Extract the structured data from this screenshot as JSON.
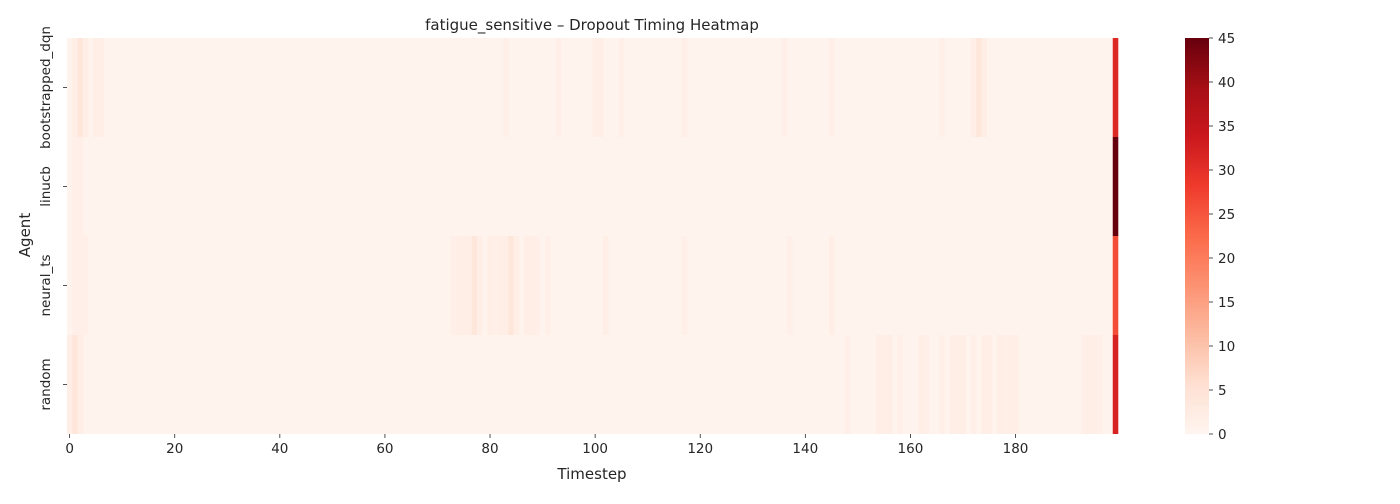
{
  "chart_data": {
    "type": "heatmap",
    "title": "fatigue_sensitive – Dropout Timing Heatmap",
    "xlabel": "Timestep",
    "ylabel": "Agent",
    "rows": [
      "bootstrapped_dqn",
      "linucb",
      "neural_ts",
      "random"
    ],
    "n_timesteps": 200,
    "x_ticks": [
      0,
      20,
      40,
      60,
      80,
      100,
      120,
      140,
      160,
      180
    ],
    "colorbar": {
      "cmap": "Reds",
      "vmin": 0,
      "vmax": 45,
      "ticks": [
        0,
        5,
        10,
        15,
        20,
        25,
        30,
        35,
        40,
        45
      ]
    },
    "base_value": 0.5,
    "cells": [
      {
        "row": "bootstrapped_dqn",
        "points": [
          [
            1,
            2
          ],
          [
            2,
            4
          ],
          [
            3,
            2
          ],
          [
            5,
            2
          ],
          [
            6,
            2
          ],
          [
            83,
            1.5
          ],
          [
            93,
            1.5
          ],
          [
            100,
            2
          ],
          [
            101,
            2
          ],
          [
            105,
            1.5
          ],
          [
            117,
            1.5
          ],
          [
            136,
            1.5
          ],
          [
            145,
            1.5
          ],
          [
            166,
            1.5
          ],
          [
            172,
            2
          ],
          [
            173,
            4
          ],
          [
            174,
            2
          ],
          [
            199,
            31
          ]
        ]
      },
      {
        "row": "linucb",
        "points": [
          [
            1,
            1.5
          ],
          [
            2,
            1.5
          ],
          [
            199,
            45
          ]
        ]
      },
      {
        "row": "neural_ts",
        "points": [
          [
            1,
            1.5
          ],
          [
            2,
            1.5
          ],
          [
            3,
            1.5
          ],
          [
            73,
            1.5
          ],
          [
            74,
            2
          ],
          [
            75,
            2
          ],
          [
            76,
            2
          ],
          [
            77,
            4
          ],
          [
            78,
            2
          ],
          [
            80,
            2
          ],
          [
            81,
            1.5
          ],
          [
            82,
            2
          ],
          [
            83,
            2
          ],
          [
            84,
            4
          ],
          [
            85,
            2
          ],
          [
            87,
            2
          ],
          [
            88,
            2
          ],
          [
            89,
            1.5
          ],
          [
            91,
            1.5
          ],
          [
            102,
            2
          ],
          [
            117,
            1.5
          ],
          [
            137,
            1.5
          ],
          [
            145,
            2
          ],
          [
            199,
            26
          ]
        ]
      },
      {
        "row": "random",
        "points": [
          [
            0,
            2
          ],
          [
            1,
            4
          ],
          [
            2,
            2
          ],
          [
            148,
            1.5
          ],
          [
            154,
            2
          ],
          [
            155,
            2
          ],
          [
            156,
            2
          ],
          [
            158,
            1.5
          ],
          [
            162,
            2
          ],
          [
            163,
            1.5
          ],
          [
            166,
            1.5
          ],
          [
            168,
            2
          ],
          [
            169,
            2
          ],
          [
            170,
            2
          ],
          [
            172,
            1.5
          ],
          [
            174,
            2
          ],
          [
            175,
            2
          ],
          [
            177,
            2
          ],
          [
            178,
            1.5
          ],
          [
            179,
            2
          ],
          [
            180,
            2
          ],
          [
            193,
            1.5
          ],
          [
            194,
            2
          ],
          [
            195,
            2
          ],
          [
            196,
            1.5
          ],
          [
            199,
            32
          ]
        ]
      }
    ]
  }
}
